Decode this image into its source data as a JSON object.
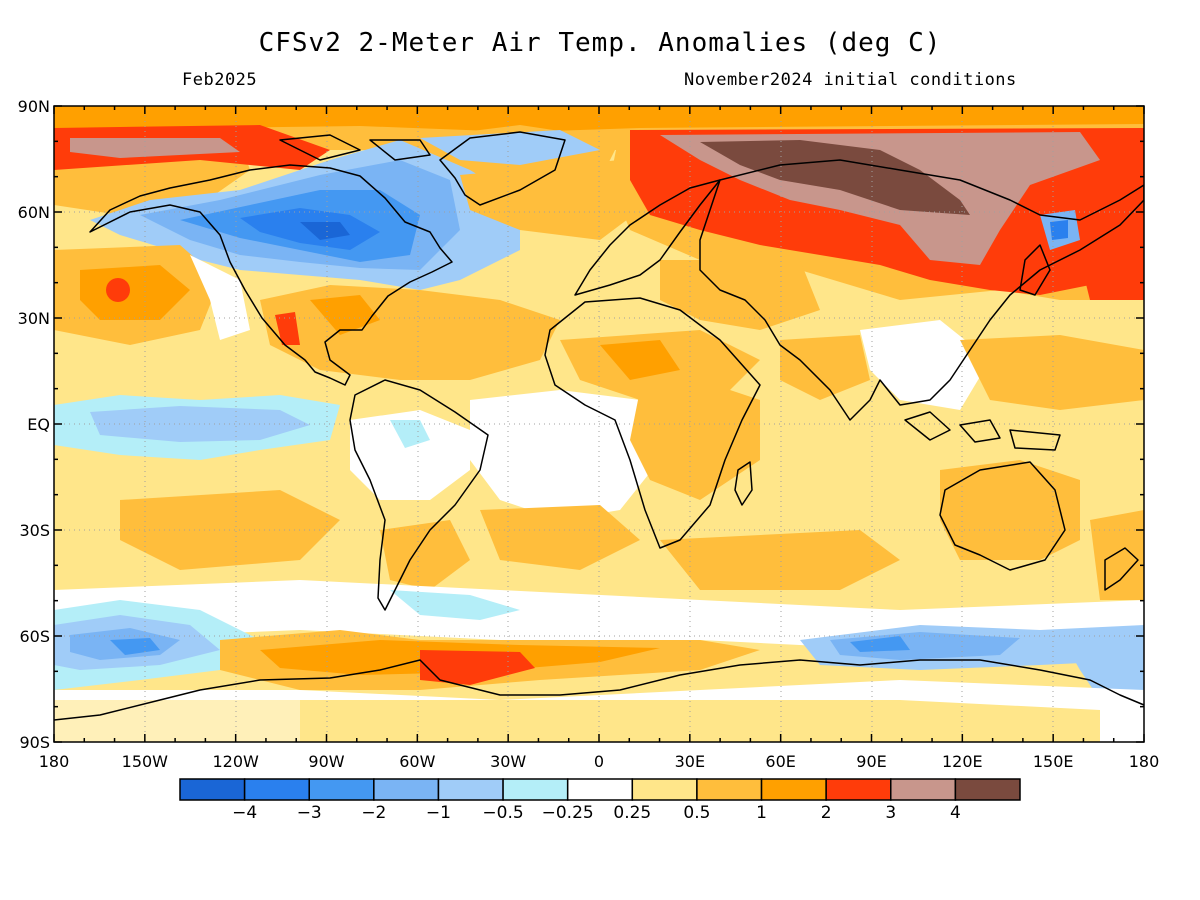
{
  "title": "CFSv2 2-Meter Air Temp. Anomalies (deg C)",
  "subtitle_left": "Feb2025",
  "subtitle_right": "November2024 initial conditions",
  "lat_labels": [
    "90N",
    "60N",
    "30N",
    "EQ",
    "30S",
    "60S",
    "90S"
  ],
  "lon_labels": [
    "180",
    "150W",
    "120W",
    "90W",
    "60W",
    "30W",
    "0",
    "30E",
    "60E",
    "90E",
    "120E",
    "150E",
    "180"
  ],
  "colorbar": {
    "colors": [
      "#1a66d6",
      "#2a80ee",
      "#4498f2",
      "#7ab4f4",
      "#a0ccf8",
      "#b4eef8",
      "#ffffff",
      "#ffe68a",
      "#ffbe3c",
      "#ffa000",
      "#ff3c0a",
      "#c8968c",
      "#7a4a3e"
    ],
    "labels": [
      "−4",
      "−3",
      "−2",
      "−1",
      "−0.5",
      "−0.25",
      "0.25",
      "0.5",
      "1",
      "2",
      "3",
      "4"
    ]
  }
}
